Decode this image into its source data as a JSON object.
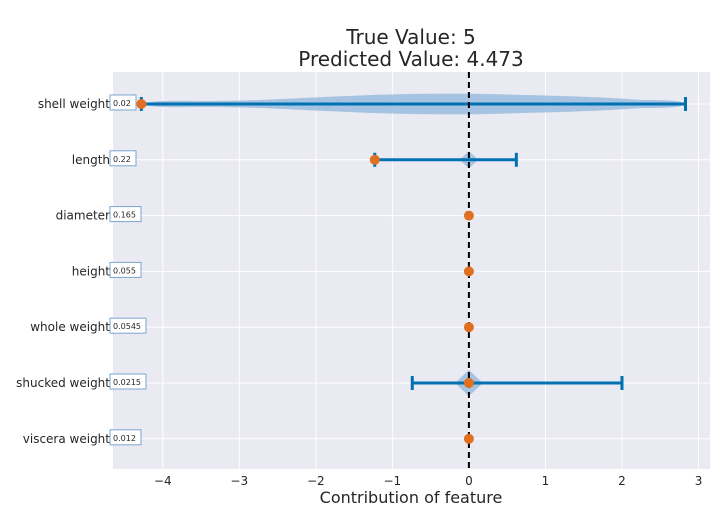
{
  "chart_data": {
    "type": "violin-errorbar",
    "title_lines": [
      "True Value: 5",
      "Predicted Value: 4.473"
    ],
    "xlabel": "Contribution of feature",
    "xlim": [
      -4.65,
      3.15
    ],
    "xticks": [
      -4,
      -3,
      -2,
      -1,
      0,
      1,
      2,
      3
    ],
    "xtick_labels": [
      "−4",
      "−3",
      "−2",
      "−1",
      "0",
      "1",
      "2",
      "3"
    ],
    "reference_line_x": 0,
    "features": [
      {
        "name": "shell weight",
        "value": "0.02",
        "point": -4.28,
        "err_low": -4.28,
        "err_high": 2.83,
        "violin": {
          "shape": "spread",
          "min": -4.28,
          "max": 2.83
        }
      },
      {
        "name": "length",
        "value": "0.22",
        "point": -1.23,
        "err_low": -1.23,
        "err_high": 0.62,
        "violin": {
          "shape": "diamond",
          "center": 0.0,
          "half_width": 0.12
        }
      },
      {
        "name": "diameter",
        "value": "0.165",
        "point": 0.0,
        "err_low": null,
        "err_high": null,
        "violin": null
      },
      {
        "name": "height",
        "value": "0.055",
        "point": 0.0,
        "err_low": null,
        "err_high": null,
        "violin": null
      },
      {
        "name": "whole weight",
        "value": "0.0545",
        "point": 0.0,
        "err_low": null,
        "err_high": null,
        "violin": null
      },
      {
        "name": "shucked weight",
        "value": "0.0215",
        "point": 0.0,
        "err_low": -0.74,
        "err_high": 2.0,
        "violin": {
          "shape": "diamond",
          "center": 0.0,
          "half_width": 0.18
        }
      },
      {
        "name": "viscera weight",
        "value": "0.012",
        "point": 0.0,
        "err_low": null,
        "err_high": null,
        "violin": null
      }
    ],
    "colors": {
      "background": "#eaeaf2",
      "grid": "#ffffff",
      "errorbar": "#0072b2",
      "violin": "#9ebfdf",
      "point": "#e07020",
      "refline": "#000000"
    }
  }
}
